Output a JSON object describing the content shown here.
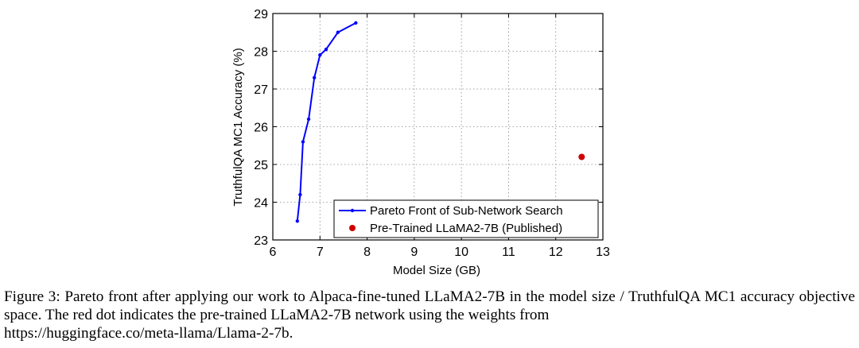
{
  "chart_data": {
    "type": "scatter",
    "xlabel": "Model Size (GB)",
    "ylabel": "TruthfulQA MC1 Accuracy (%)",
    "xlim": [
      6,
      13
    ],
    "ylim": [
      23,
      29
    ],
    "xticks": [
      "6",
      "7",
      "8",
      "9",
      "10",
      "11",
      "12",
      "13"
    ],
    "yticks": [
      "23",
      "24",
      "25",
      "26",
      "27",
      "28",
      "29"
    ],
    "grid": true,
    "legend_position": "bottom-right",
    "series": [
      {
        "name": "Pareto Front of Sub-Network Search",
        "kind": "line-markers",
        "color": "#0000ff",
        "x": [
          6.52,
          6.58,
          6.64,
          6.76,
          6.88,
          7.0,
          7.13,
          7.38,
          7.76
        ],
        "y": [
          23.5,
          24.2,
          25.6,
          26.2,
          27.3,
          27.9,
          28.05,
          28.5,
          28.75
        ]
      },
      {
        "name": "Pre-Trained LLaMA2-7B (Published)",
        "kind": "point",
        "color": "#cc0000",
        "x": [
          12.55
        ],
        "y": [
          25.2
        ]
      }
    ]
  },
  "caption": {
    "line1": "Figure 3: Pareto front after applying our work to Alpaca-fine-tuned LLaMA2-7B in the model size / TruthfulQA MC1 accuracy objective space. The red dot indicates the pre-trained LLaMA2-7B network using the weights from",
    "line2": "https://huggingface.co/meta-llama/Llama-2-7b."
  }
}
